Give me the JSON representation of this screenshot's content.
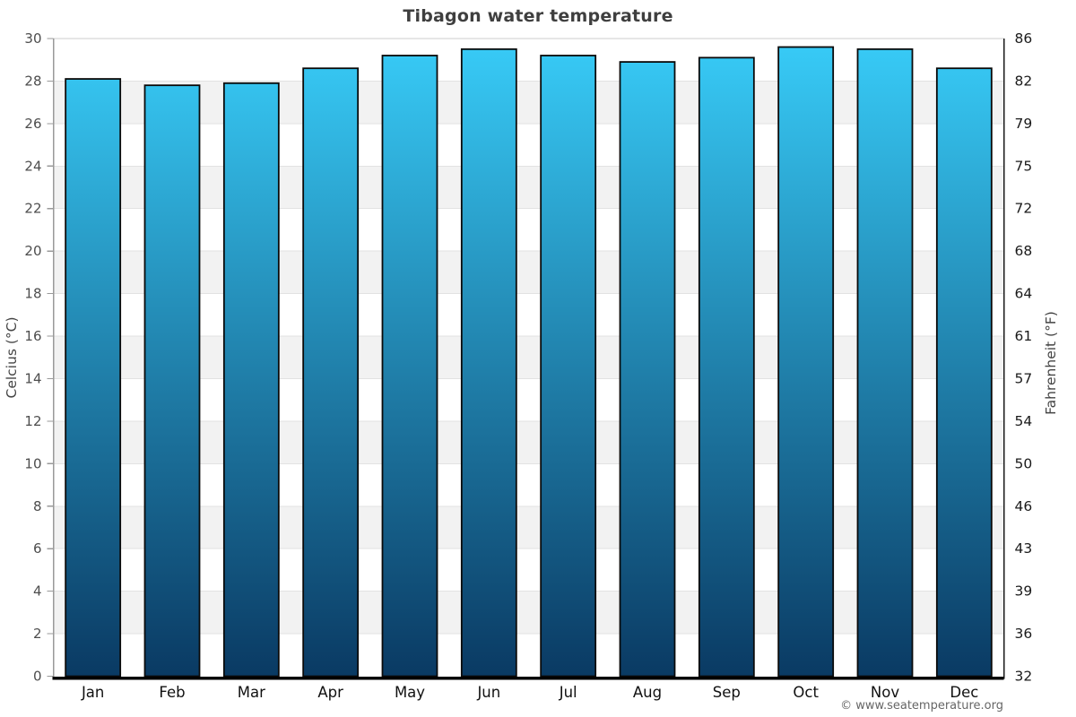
{
  "chart_data": {
    "type": "bar",
    "title": "Tibagon water temperature",
    "categories": [
      "Jan",
      "Feb",
      "Mar",
      "Apr",
      "May",
      "Jun",
      "Jul",
      "Aug",
      "Sep",
      "Oct",
      "Nov",
      "Dec"
    ],
    "values": [
      28.1,
      27.8,
      27.9,
      28.6,
      29.2,
      29.5,
      29.2,
      28.9,
      29.1,
      29.6,
      29.5,
      28.6
    ],
    "ylabel_left": "Celcius (°C)",
    "ylabel_right": "Fahrenheit (°F)",
    "ylim": [
      0,
      30
    ],
    "left_ticks": [
      0,
      2,
      4,
      6,
      8,
      10,
      12,
      14,
      16,
      18,
      20,
      22,
      24,
      26,
      28,
      30
    ],
    "right_tick_labels": [
      "32",
      "36",
      "39",
      "43",
      "46",
      "50",
      "54",
      "57",
      "61",
      "64",
      "68",
      "72",
      "75",
      "79",
      "82",
      "86"
    ],
    "legend_position": "none",
    "grid_style": "alternating horizontal bands every 2 degrees",
    "copyright": "© www.seatemperature.org",
    "colors": {
      "bar_top": "#38CCF8",
      "bar_bottom": "#0A3A63",
      "bar_border": "#0a0a0a",
      "band_gray": "#f2f2f2",
      "grid_line": "#e2e2e2",
      "plot_top_border": "#cccccc",
      "left_axis": "#999999",
      "right_axis": "#1a1a1a",
      "bottom_axis": "#000000",
      "left_tick_text": "#4d4d4d",
      "right_tick_text": "#1a1a1a",
      "month_text": "#111111",
      "axis_title_text": "#444444",
      "title_text": "#3f3f3f",
      "copyright_text": "#666666"
    }
  }
}
